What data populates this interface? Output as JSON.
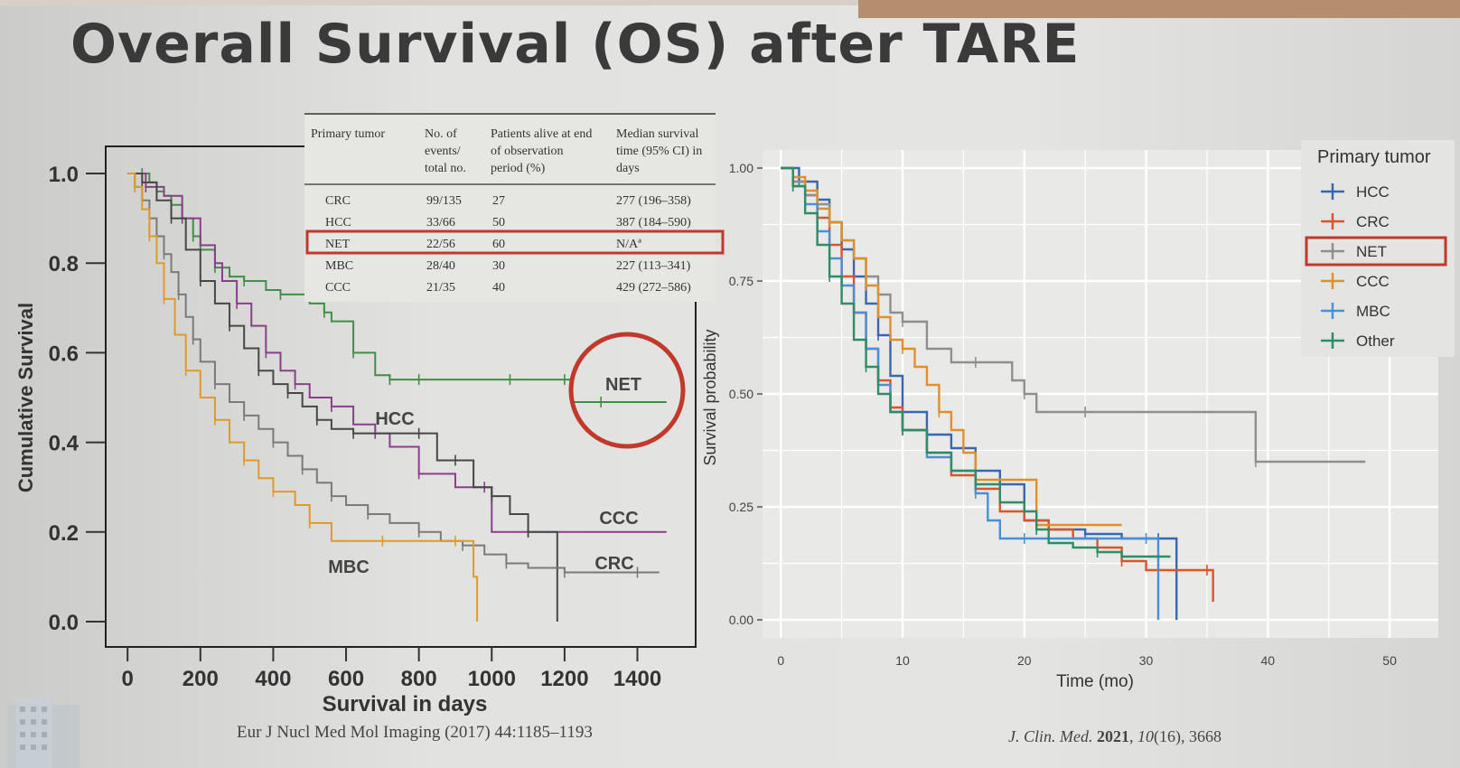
{
  "slide": {
    "title": "Overall Survival (OS) after TARE",
    "citation_left": "Eur J Nucl Med Mol Imaging (2017) 44:1185–1193",
    "citation_right": {
      "journal": "J. Clin. Med.",
      "year": "2021",
      "volume": "10",
      "issue_pages": "(16), 3668"
    }
  },
  "colors": {
    "green": "#3f8f47",
    "purple": "#8a3f8c",
    "dark": "#474747",
    "gray": "#7a7a7a",
    "orange": "#e09a2a",
    "red": "#c0392b",
    "HCC": "#3a66b0",
    "CRC": "#d9552e",
    "NET": "#8f8f8f",
    "CCC": "#e0902a",
    "MBC": "#4a90d4",
    "Other": "#2e8c66"
  },
  "table": {
    "headers": [
      [
        "Primary tumor"
      ],
      [
        "No. of",
        "events/",
        "total no."
      ],
      [
        "Patients alive at end",
        "of observation",
        "period (%)"
      ],
      [
        "Median survival",
        "time (95% CI) in",
        "days"
      ]
    ],
    "rows": [
      [
        "CRC",
        "99/135",
        "27",
        "277 (196–358)"
      ],
      [
        "HCC",
        "33/66",
        "50",
        "387 (184–590)"
      ],
      [
        "NET",
        "22/56",
        "60",
        "N/Aª"
      ],
      [
        "MBC",
        "28/40",
        "30",
        "227 (113–341)"
      ],
      [
        "CCC",
        "21/35",
        "40",
        "429 (272–586)"
      ]
    ],
    "highlighted_row": "NET"
  },
  "chart_data": [
    {
      "type": "line",
      "title": "",
      "xlabel": "Survival in days",
      "ylabel": "Cumulative Survival",
      "xlim": [
        -60,
        1560
      ],
      "ylim": [
        0,
        1
      ],
      "xticks": [
        0,
        200,
        400,
        600,
        800,
        1000,
        1200,
        1400
      ],
      "yticks": [
        "0.0",
        "0.2",
        "0.4",
        "0.6",
        "0.8",
        "1.0"
      ],
      "curve_labels": {
        "HCC": "HCC",
        "CCC": "CCC",
        "CRC": "CRC",
        "MBC": "MBC",
        "NET": "NET"
      },
      "highlight": "NET",
      "series": [
        {
          "name": "NET",
          "color_key": "green",
          "x": [
            0,
            40,
            60,
            80,
            100,
            120,
            150,
            180,
            200,
            240,
            280,
            320,
            380,
            420,
            500,
            540,
            560,
            620,
            680,
            720,
            760,
            800,
            900,
            1050,
            1100,
            1200,
            1220,
            1300,
            1400,
            1480
          ],
          "y": [
            1.0,
            1.0,
            0.98,
            0.96,
            0.95,
            0.93,
            0.9,
            0.86,
            0.83,
            0.79,
            0.77,
            0.76,
            0.74,
            0.73,
            0.71,
            0.69,
            0.67,
            0.6,
            0.55,
            0.54,
            0.54,
            0.54,
            0.54,
            0.54,
            0.54,
            0.54,
            0.49,
            0.49,
            0.49,
            0.49
          ]
        },
        {
          "name": "CCC",
          "color_key": "purple",
          "x": [
            0,
            50,
            100,
            150,
            200,
            240,
            260,
            300,
            340,
            380,
            420,
            460,
            500,
            560,
            620,
            680,
            720,
            800,
            900,
            980,
            1000,
            1100,
            1200,
            1480
          ],
          "y": [
            1.0,
            0.97,
            0.95,
            0.9,
            0.84,
            0.8,
            0.76,
            0.71,
            0.66,
            0.6,
            0.56,
            0.53,
            0.5,
            0.48,
            0.44,
            0.42,
            0.39,
            0.33,
            0.3,
            0.3,
            0.2,
            0.2,
            0.2,
            0.2
          ]
        },
        {
          "name": "HCC",
          "color_key": "dark",
          "x": [
            0,
            40,
            80,
            120,
            160,
            200,
            240,
            280,
            320,
            360,
            400,
            440,
            480,
            520,
            560,
            620,
            700,
            800,
            850,
            900,
            950,
            1000,
            1050,
            1100,
            1150,
            1180
          ],
          "y": [
            1.0,
            0.98,
            0.94,
            0.9,
            0.83,
            0.76,
            0.71,
            0.66,
            0.61,
            0.56,
            0.53,
            0.51,
            0.48,
            0.45,
            0.43,
            0.42,
            0.42,
            0.42,
            0.36,
            0.36,
            0.3,
            0.28,
            0.24,
            0.2,
            0.2,
            0.0
          ]
        },
        {
          "name": "CRC",
          "color_key": "gray",
          "x": [
            0,
            20,
            40,
            60,
            80,
            100,
            120,
            140,
            160,
            180,
            200,
            240,
            280,
            320,
            360,
            400,
            440,
            480,
            520,
            560,
            600,
            660,
            720,
            800,
            860,
            920,
            980,
            1040,
            1100,
            1200,
            1300,
            1400,
            1460
          ],
          "y": [
            1.0,
            0.97,
            0.94,
            0.9,
            0.86,
            0.82,
            0.78,
            0.73,
            0.68,
            0.63,
            0.58,
            0.53,
            0.49,
            0.46,
            0.43,
            0.4,
            0.37,
            0.34,
            0.31,
            0.28,
            0.26,
            0.24,
            0.22,
            0.2,
            0.18,
            0.17,
            0.15,
            0.13,
            0.12,
            0.11,
            0.11,
            0.11,
            0.11
          ]
        },
        {
          "name": "MBC",
          "color_key": "orange",
          "x": [
            0,
            20,
            40,
            60,
            80,
            100,
            130,
            160,
            200,
            240,
            280,
            320,
            360,
            400,
            460,
            500,
            560,
            700,
            800,
            900,
            950,
            960
          ],
          "y": [
            1.0,
            0.97,
            0.92,
            0.86,
            0.8,
            0.72,
            0.64,
            0.56,
            0.5,
            0.45,
            0.4,
            0.36,
            0.32,
            0.29,
            0.26,
            0.22,
            0.18,
            0.18,
            0.18,
            0.18,
            0.1,
            0.0
          ]
        }
      ]
    },
    {
      "type": "line",
      "title": "",
      "xlabel": "Time (mo)",
      "ylabel": "Survival probability",
      "xlim": [
        -1.5,
        54
      ],
      "ylim": [
        -0.04,
        1.04
      ],
      "xticks": [
        "0",
        "10",
        "20",
        "30",
        "40",
        "50"
      ],
      "yticks": [
        "0.00",
        "0.25",
        "0.50",
        "0.75",
        "1.00"
      ],
      "legend": {
        "title": "Primary tumor",
        "placement": "right",
        "highlight": "NET"
      },
      "series": [
        {
          "name": "HCC",
          "x": [
            0,
            1.5,
            3,
            4,
            5,
            6,
            7,
            8,
            9,
            10,
            12,
            14,
            16,
            18,
            20,
            22,
            25,
            28,
            30,
            31,
            32.5
          ],
          "y": [
            1.0,
            0.97,
            0.93,
            0.88,
            0.82,
            0.76,
            0.7,
            0.63,
            0.54,
            0.46,
            0.41,
            0.38,
            0.33,
            0.3,
            0.22,
            0.2,
            0.19,
            0.18,
            0.18,
            0.18,
            0.0
          ]
        },
        {
          "name": "CRC",
          "x": [
            0,
            1,
            2,
            3,
            4,
            5,
            6,
            7,
            8,
            9,
            10,
            12,
            14,
            16,
            18,
            20,
            22,
            24,
            26,
            28,
            30,
            32,
            35,
            35.5
          ],
          "y": [
            1.0,
            0.97,
            0.94,
            0.89,
            0.83,
            0.76,
            0.68,
            0.6,
            0.53,
            0.47,
            0.42,
            0.37,
            0.32,
            0.29,
            0.24,
            0.22,
            0.2,
            0.18,
            0.16,
            0.13,
            0.11,
            0.11,
            0.11,
            0.04
          ]
        },
        {
          "name": "NET",
          "x": [
            0,
            1,
            2,
            3,
            4,
            5,
            6,
            7,
            8,
            9,
            10,
            12,
            14,
            16,
            18,
            19,
            20,
            21,
            23,
            25,
            30,
            35,
            39,
            40,
            45,
            48
          ],
          "y": [
            1.0,
            0.97,
            0.94,
            0.92,
            0.88,
            0.84,
            0.8,
            0.76,
            0.72,
            0.68,
            0.66,
            0.6,
            0.57,
            0.57,
            0.57,
            0.53,
            0.5,
            0.46,
            0.46,
            0.46,
            0.46,
            0.46,
            0.35,
            0.35,
            0.35,
            0.35
          ]
        },
        {
          "name": "CCC",
          "x": [
            0,
            1,
            2,
            3,
            4,
            5,
            6,
            7,
            8,
            9,
            10,
            11,
            12,
            13,
            14,
            15,
            16,
            18,
            20,
            21,
            22,
            25,
            28
          ],
          "y": [
            1.0,
            0.98,
            0.95,
            0.91,
            0.88,
            0.84,
            0.8,
            0.74,
            0.67,
            0.62,
            0.6,
            0.56,
            0.52,
            0.46,
            0.42,
            0.37,
            0.31,
            0.31,
            0.31,
            0.21,
            0.21,
            0.21,
            0.21
          ]
        },
        {
          "name": "MBC",
          "x": [
            0,
            1,
            2,
            3,
            4,
            5,
            6,
            7,
            8,
            9,
            10,
            12,
            14,
            16,
            17,
            18,
            20,
            22,
            24,
            30,
            31
          ],
          "y": [
            1.0,
            0.96,
            0.92,
            0.86,
            0.8,
            0.74,
            0.68,
            0.6,
            0.52,
            0.46,
            0.42,
            0.36,
            0.33,
            0.28,
            0.22,
            0.18,
            0.18,
            0.18,
            0.18,
            0.18,
            0.0
          ]
        },
        {
          "name": "Other",
          "x": [
            0,
            1,
            2,
            3,
            4,
            5,
            6,
            7,
            8,
            9,
            10,
            12,
            14,
            16,
            18,
            20,
            21,
            22,
            24,
            26,
            28,
            30,
            32
          ],
          "y": [
            1.0,
            0.96,
            0.9,
            0.83,
            0.76,
            0.7,
            0.62,
            0.56,
            0.5,
            0.46,
            0.42,
            0.37,
            0.33,
            0.3,
            0.26,
            0.24,
            0.2,
            0.17,
            0.16,
            0.15,
            0.14,
            0.14,
            0.14
          ]
        }
      ]
    }
  ]
}
